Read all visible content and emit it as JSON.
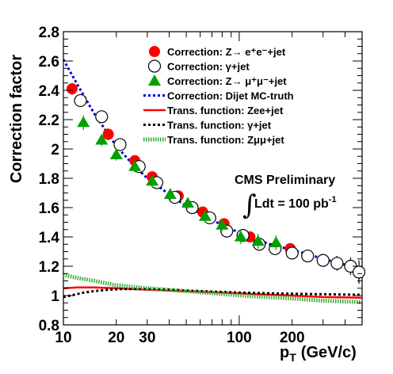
{
  "chart_data": {
    "type": "scatter",
    "xlabel": "p",
    "xlabel_sub": "T",
    "xlabel_unit": "(GeV/c)",
    "ylabel": "Correction factor",
    "x_scale": "log",
    "xlim": [
      10,
      500
    ],
    "ylim": [
      0.8,
      2.8
    ],
    "x_tick_labels": [
      {
        "value": 10,
        "label": "10"
      },
      {
        "value": 20,
        "label": "20"
      },
      {
        "value": 30,
        "label": "30"
      },
      {
        "value": 100,
        "label": "100"
      },
      {
        "value": 200,
        "label": "200"
      }
    ],
    "y_tick_labels": [
      {
        "value": 0.8,
        "label": "0.8"
      },
      {
        "value": 1.0,
        "label": "1"
      },
      {
        "value": 1.2,
        "label": "1.2"
      },
      {
        "value": 1.4,
        "label": "1.4"
      },
      {
        "value": 1.6,
        "label": "1.6"
      },
      {
        "value": 1.8,
        "label": "1.8"
      },
      {
        "value": 2.0,
        "label": "2"
      },
      {
        "value": 2.2,
        "label": "2.2"
      },
      {
        "value": 2.4,
        "label": "2.4"
      },
      {
        "value": 2.6,
        "label": "2.6"
      },
      {
        "value": 2.8,
        "label": "2.8"
      }
    ],
    "legend_position": "top-right",
    "annotation": {
      "line1": "CMS Preliminary",
      "integral": "∫",
      "line2_main": "Ldt = 100 pb",
      "line2_sup": "-1"
    },
    "series": [
      {
        "name": "Correction: Z→ e⁺e⁻+jet",
        "marker": "filled-circle",
        "color": "#ff0000",
        "points": [
          {
            "x": 11.2,
            "y": 2.41,
            "err": 0.04
          },
          {
            "x": 18.0,
            "y": 2.1,
            "err": 0.04
          },
          {
            "x": 25.5,
            "y": 1.92,
            "err": 0.03
          },
          {
            "x": 32.0,
            "y": 1.81,
            "err": 0.03
          },
          {
            "x": 45.0,
            "y": 1.68,
            "err": 0.03
          },
          {
            "x": 62.0,
            "y": 1.57,
            "err": 0.03
          },
          {
            "x": 82.0,
            "y": 1.49,
            "err": 0.03
          },
          {
            "x": 115.0,
            "y": 1.4,
            "err": 0.03
          },
          {
            "x": 195.0,
            "y": 1.32,
            "err": 0.03
          }
        ]
      },
      {
        "name": "Correction: γ+jet",
        "marker": "open-circle",
        "color": "#000000",
        "points": [
          {
            "x": 12.5,
            "y": 2.33,
            "err": 0.03
          },
          {
            "x": 16.5,
            "y": 2.22,
            "err": 0.03
          },
          {
            "x": 21.0,
            "y": 2.03,
            "err": 0.03
          },
          {
            "x": 27.0,
            "y": 1.88,
            "err": 0.03
          },
          {
            "x": 34.0,
            "y": 1.77,
            "err": 0.03
          },
          {
            "x": 43.0,
            "y": 1.67,
            "err": 0.02
          },
          {
            "x": 54.0,
            "y": 1.6,
            "err": 0.02
          },
          {
            "x": 68.0,
            "y": 1.53,
            "err": 0.02
          },
          {
            "x": 85.0,
            "y": 1.44,
            "err": 0.02
          },
          {
            "x": 105.0,
            "y": 1.41,
            "err": 0.02
          },
          {
            "x": 130.0,
            "y": 1.35,
            "err": 0.02
          },
          {
            "x": 160.0,
            "y": 1.32,
            "err": 0.02
          },
          {
            "x": 200.0,
            "y": 1.29,
            "err": 0.02
          },
          {
            "x": 245.0,
            "y": 1.27,
            "err": 0.03
          },
          {
            "x": 300.0,
            "y": 1.24,
            "err": 0.04
          },
          {
            "x": 360.0,
            "y": 1.22,
            "err": 0.05
          },
          {
            "x": 430.0,
            "y": 1.2,
            "err": 0.06
          },
          {
            "x": 480.0,
            "y": 1.16,
            "err": 0.08
          }
        ]
      },
      {
        "name": "Correction: Z→ μ⁺μ⁻+jet",
        "marker": "filled-triangle",
        "color": "#00a000",
        "points": [
          {
            "x": 13.0,
            "y": 2.18,
            "err": 0.05
          },
          {
            "x": 16.5,
            "y": 2.06,
            "err": 0.04
          },
          {
            "x": 20.0,
            "y": 1.96,
            "err": 0.04
          },
          {
            "x": 25.5,
            "y": 1.88,
            "err": 0.04
          },
          {
            "x": 32.0,
            "y": 1.78,
            "err": 0.04
          },
          {
            "x": 40.5,
            "y": 1.69,
            "err": 0.04
          },
          {
            "x": 51.0,
            "y": 1.63,
            "err": 0.04
          },
          {
            "x": 64.0,
            "y": 1.54,
            "err": 0.04
          },
          {
            "x": 80.0,
            "y": 1.48,
            "err": 0.04
          },
          {
            "x": 102.0,
            "y": 1.4,
            "err": 0.05
          },
          {
            "x": 128.0,
            "y": 1.37,
            "err": 0.05
          },
          {
            "x": 162.0,
            "y": 1.36,
            "err": 0.05
          }
        ]
      },
      {
        "name": "Correction: Dijet MC-truth",
        "marker": "dotted-line",
        "color": "#0000dd",
        "points": [
          {
            "x": 10,
            "y": 2.61
          },
          {
            "x": 12,
            "y": 2.44
          },
          {
            "x": 15,
            "y": 2.24
          },
          {
            "x": 20,
            "y": 2.02
          },
          {
            "x": 25,
            "y": 1.89
          },
          {
            "x": 30,
            "y": 1.8
          },
          {
            "x": 40,
            "y": 1.69
          },
          {
            "x": 50,
            "y": 1.61
          },
          {
            "x": 60,
            "y": 1.56
          },
          {
            "x": 80,
            "y": 1.48
          },
          {
            "x": 100,
            "y": 1.43
          },
          {
            "x": 120,
            "y": 1.39
          },
          {
            "x": 150,
            "y": 1.35
          },
          {
            "x": 200,
            "y": 1.31
          },
          {
            "x": 250,
            "y": 1.28
          },
          {
            "x": 300,
            "y": 1.25
          },
          {
            "x": 400,
            "y": 1.21
          },
          {
            "x": 500,
            "y": 1.17
          }
        ]
      },
      {
        "name": "Trans. function: Zee+jet",
        "marker": "solid-line",
        "color": "#ff0000",
        "points": [
          {
            "x": 10,
            "y": 1.05
          },
          {
            "x": 12,
            "y": 1.055
          },
          {
            "x": 15,
            "y": 1.055
          },
          {
            "x": 20,
            "y": 1.05
          },
          {
            "x": 30,
            "y": 1.04
          },
          {
            "x": 50,
            "y": 1.03
          },
          {
            "x": 80,
            "y": 1.02
          },
          {
            "x": 120,
            "y": 1.01
          },
          {
            "x": 200,
            "y": 1.0
          },
          {
            "x": 300,
            "y": 0.99
          },
          {
            "x": 500,
            "y": 0.985
          }
        ]
      },
      {
        "name": "Trans. function: γ+jet",
        "marker": "dotted-line",
        "color": "#000000",
        "points": [
          {
            "x": 10,
            "y": 0.99
          },
          {
            "x": 11,
            "y": 1.0
          },
          {
            "x": 13,
            "y": 1.02
          },
          {
            "x": 15,
            "y": 1.03
          },
          {
            "x": 18,
            "y": 1.04
          },
          {
            "x": 22,
            "y": 1.045
          },
          {
            "x": 30,
            "y": 1.045
          },
          {
            "x": 40,
            "y": 1.04
          },
          {
            "x": 60,
            "y": 1.03
          },
          {
            "x": 100,
            "y": 1.02
          },
          {
            "x": 150,
            "y": 1.015
          },
          {
            "x": 250,
            "y": 1.01
          },
          {
            "x": 500,
            "y": 1.005
          }
        ]
      },
      {
        "name": "Trans. function: Zμμ+jet",
        "marker": "hatched-line",
        "color": "#33aa33",
        "points": [
          {
            "x": 10,
            "y": 1.14
          },
          {
            "x": 12,
            "y": 1.12
          },
          {
            "x": 15,
            "y": 1.1
          },
          {
            "x": 20,
            "y": 1.07
          },
          {
            "x": 30,
            "y": 1.05
          },
          {
            "x": 50,
            "y": 1.03
          },
          {
            "x": 80,
            "y": 1.01
          },
          {
            "x": 120,
            "y": 0.995
          },
          {
            "x": 200,
            "y": 0.98
          },
          {
            "x": 300,
            "y": 0.965
          },
          {
            "x": 500,
            "y": 0.955
          }
        ]
      }
    ]
  }
}
